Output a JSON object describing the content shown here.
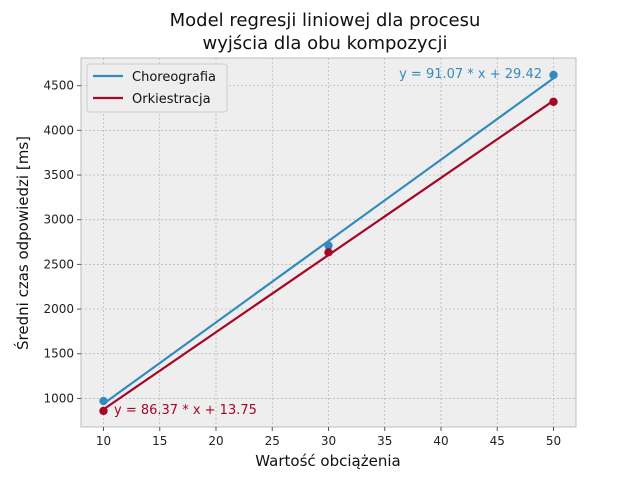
{
  "chart_data": {
    "type": "line",
    "title_lines": [
      "Model regresji liniowej dla procesu",
      "wyjścia dla obu kompozycji"
    ],
    "xlabel": "Wartość obciążenia",
    "ylabel": "Średni czas odpowiedzi [ms]",
    "xlim": [
      8,
      52
    ],
    "ylim": [
      680,
      4810
    ],
    "xticks": [
      10,
      15,
      20,
      25,
      30,
      35,
      40,
      45,
      50
    ],
    "yticks": [
      1000,
      1500,
      2000,
      2500,
      3000,
      3500,
      4000,
      4500
    ],
    "grid": true,
    "legend_position": "top-left",
    "series": [
      {
        "name": "Choreografia",
        "color": "#348abd",
        "points": [
          {
            "x": 10,
            "y": 970
          },
          {
            "x": 30,
            "y": 2710
          },
          {
            "x": 50,
            "y": 4620
          }
        ],
        "fit": {
          "slope": 91.07,
          "intercept": 29.42
        },
        "equation": "y = 91.07 * x + 29.42"
      },
      {
        "name": "Orkiestracja",
        "color": "#a60628",
        "points": [
          {
            "x": 10,
            "y": 860
          },
          {
            "x": 30,
            "y": 2635
          },
          {
            "x": 50,
            "y": 4320
          }
        ],
        "fit": {
          "slope": 86.37,
          "intercept": 13.75
        },
        "equation": "y = 86.37 * x + 13.75"
      }
    ]
  }
}
